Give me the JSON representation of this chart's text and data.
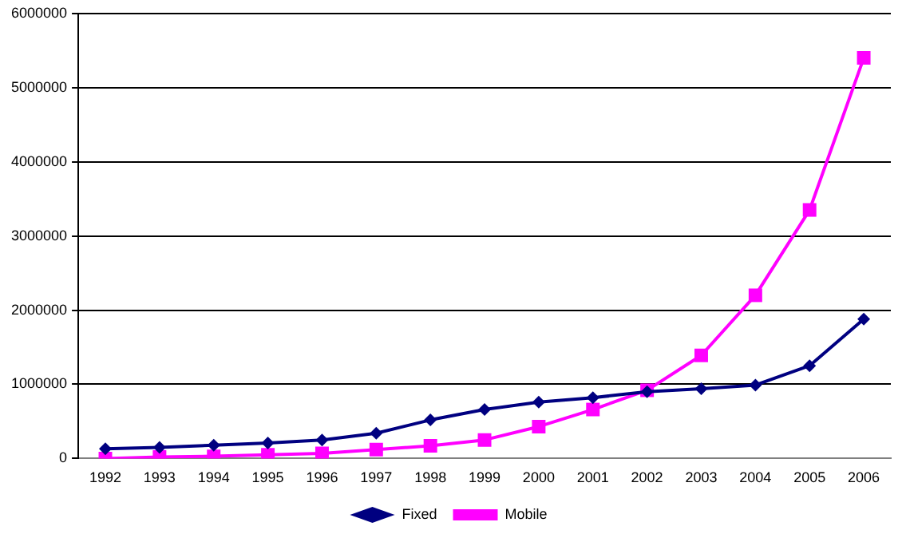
{
  "chart_data": {
    "type": "line",
    "categories": [
      "1992",
      "1993",
      "1994",
      "1995",
      "1996",
      "1997",
      "1998",
      "1999",
      "2000",
      "2001",
      "2002",
      "2003",
      "2004",
      "2005",
      "2006"
    ],
    "series": [
      {
        "name": "Fixed",
        "color": "#000080",
        "marker": "diamond",
        "values": [
          130000,
          150000,
          180000,
          210000,
          250000,
          340000,
          520000,
          660000,
          760000,
          820000,
          900000,
          940000,
          990000,
          1250000,
          1880000
        ]
      },
      {
        "name": "Mobile",
        "color": "#ff00ff",
        "marker": "square",
        "values": [
          0,
          20000,
          30000,
          50000,
          70000,
          120000,
          170000,
          250000,
          430000,
          660000,
          920000,
          1390000,
          2200000,
          3350000,
          5400000
        ]
      }
    ],
    "ylim": [
      0,
      6000000
    ],
    "yticks": [
      0,
      1000000,
      2000000,
      3000000,
      4000000,
      5000000,
      6000000
    ],
    "grid": "y",
    "legend": "bottom",
    "line_style": "solid"
  }
}
